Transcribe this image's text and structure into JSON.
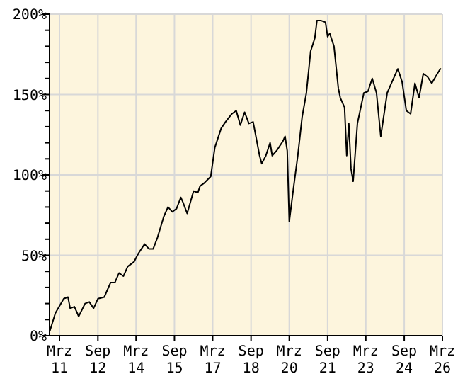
{
  "chart_data": {
    "type": "line",
    "xlim": [
      "2010-10-10",
      "2026-03-01"
    ],
    "xticks": [
      {
        "value": "2011-03-01",
        "label": "Mrz 11"
      },
      {
        "value": "2012-09-01",
        "label": "Sep 12"
      },
      {
        "value": "2014-03-01",
        "label": "Mrz 14"
      },
      {
        "value": "2015-09-01",
        "label": "Sep 15"
      },
      {
        "value": "2017-03-01",
        "label": "Mrz 17"
      },
      {
        "value": "2018-09-01",
        "label": "Sep 18"
      },
      {
        "value": "2020-03-01",
        "label": "Mrz 20"
      },
      {
        "value": "2021-09-01",
        "label": "Sep 21"
      },
      {
        "value": "2023-03-01",
        "label": "Mrz 23"
      },
      {
        "value": "2024-09-01",
        "label": "Sep 24"
      },
      {
        "value": "2026-03-01",
        "label": "Mrz 26"
      }
    ],
    "ylim": [
      0,
      200
    ],
    "yticks": [
      {
        "value": 0,
        "label": "0%"
      },
      {
        "value": 10,
        "label": null
      },
      {
        "value": 20,
        "label": null
      },
      {
        "value": 30,
        "label": null
      },
      {
        "value": 40,
        "label": null
      },
      {
        "value": 50,
        "label": "50%"
      },
      {
        "value": 60,
        "label": null
      },
      {
        "value": 70,
        "label": null
      },
      {
        "value": 80,
        "label": null
      },
      {
        "value": 90,
        "label": null
      },
      {
        "value": 100,
        "label": "100%"
      },
      {
        "value": 110,
        "label": null
      },
      {
        "value": 120,
        "label": null
      },
      {
        "value": 130,
        "label": null
      },
      {
        "value": 140,
        "label": null
      },
      {
        "value": 150,
        "label": "150%"
      },
      {
        "value": 160,
        "label": null
      },
      {
        "value": 170,
        "label": null
      },
      {
        "value": 180,
        "label": null
      },
      {
        "value": 190,
        "label": null
      },
      {
        "value": 200,
        "label": "200%"
      }
    ],
    "grid": true,
    "x": [
      "2010-10-15",
      "2011-01",
      "2011-05",
      "2011-07",
      "2011-08",
      "2011-10",
      "2011-12",
      "2012-03",
      "2012-05",
      "2012-07",
      "2012-09",
      "2012-12",
      "2013-03",
      "2013-05",
      "2013-07",
      "2013-09",
      "2013-11",
      "2014-02",
      "2014-04",
      "2014-07",
      "2014-09",
      "2014-11",
      "2015-01",
      "2015-04",
      "2015-06",
      "2015-08",
      "2015-10",
      "2015-12",
      "2016-01",
      "2016-03",
      "2016-06",
      "2016-08",
      "2016-09",
      "2016-11",
      "2017-02",
      "2017-04",
      "2017-07",
      "2017-09",
      "2017-12",
      "2018-02",
      "2018-04",
      "2018-06",
      "2018-08",
      "2018-10",
      "2018-11",
      "2019-01",
      "2019-02",
      "2019-04",
      "2019-06",
      "2019-07",
      "2019-09",
      "2019-12",
      "2020-01",
      "2020-02",
      "2020-03",
      "2020-05",
      "2020-07",
      "2020-09",
      "2020-11",
      "2021-01",
      "2021-03",
      "2021-04",
      "2021-06",
      "2021-08",
      "2021-09",
      "2021-10",
      "2021-12",
      "2022-02",
      "2022-03",
      "2022-05",
      "2022-06",
      "2022-07",
      "2022-08",
      "2022-09",
      "2022-11",
      "2023-02",
      "2023-04",
      "2023-06",
      "2023-08",
      "2023-10",
      "2024-01",
      "2024-03",
      "2024-06",
      "2024-08",
      "2024-10",
      "2024-12",
      "2025-02",
      "2025-04",
      "2025-06",
      "2025-08",
      "2025-10",
      "2026-01",
      "2026-02"
    ],
    "series": [
      {
        "color": "#000000",
        "values": [
          3,
          14,
          23,
          24,
          17,
          18,
          12,
          20,
          21,
          17,
          23,
          24,
          33,
          33,
          39,
          37,
          43,
          46,
          51,
          57,
          54,
          54,
          61,
          74,
          80,
          77,
          79,
          86,
          83,
          76,
          90,
          89,
          93,
          95,
          99,
          117,
          129,
          133,
          138,
          140,
          131,
          139,
          132,
          133,
          126,
          112,
          107,
          112,
          120,
          112,
          115,
          121,
          124,
          115,
          71,
          92,
          112,
          136,
          151,
          177,
          185,
          196,
          196,
          195,
          186,
          188,
          180,
          154,
          148,
          142,
          112,
          132,
          104,
          96,
          132,
          151,
          152,
          160,
          151,
          124,
          151,
          157,
          166,
          158,
          140,
          138,
          157,
          148,
          163,
          161,
          157,
          164,
          166
        ]
      }
    ]
  }
}
